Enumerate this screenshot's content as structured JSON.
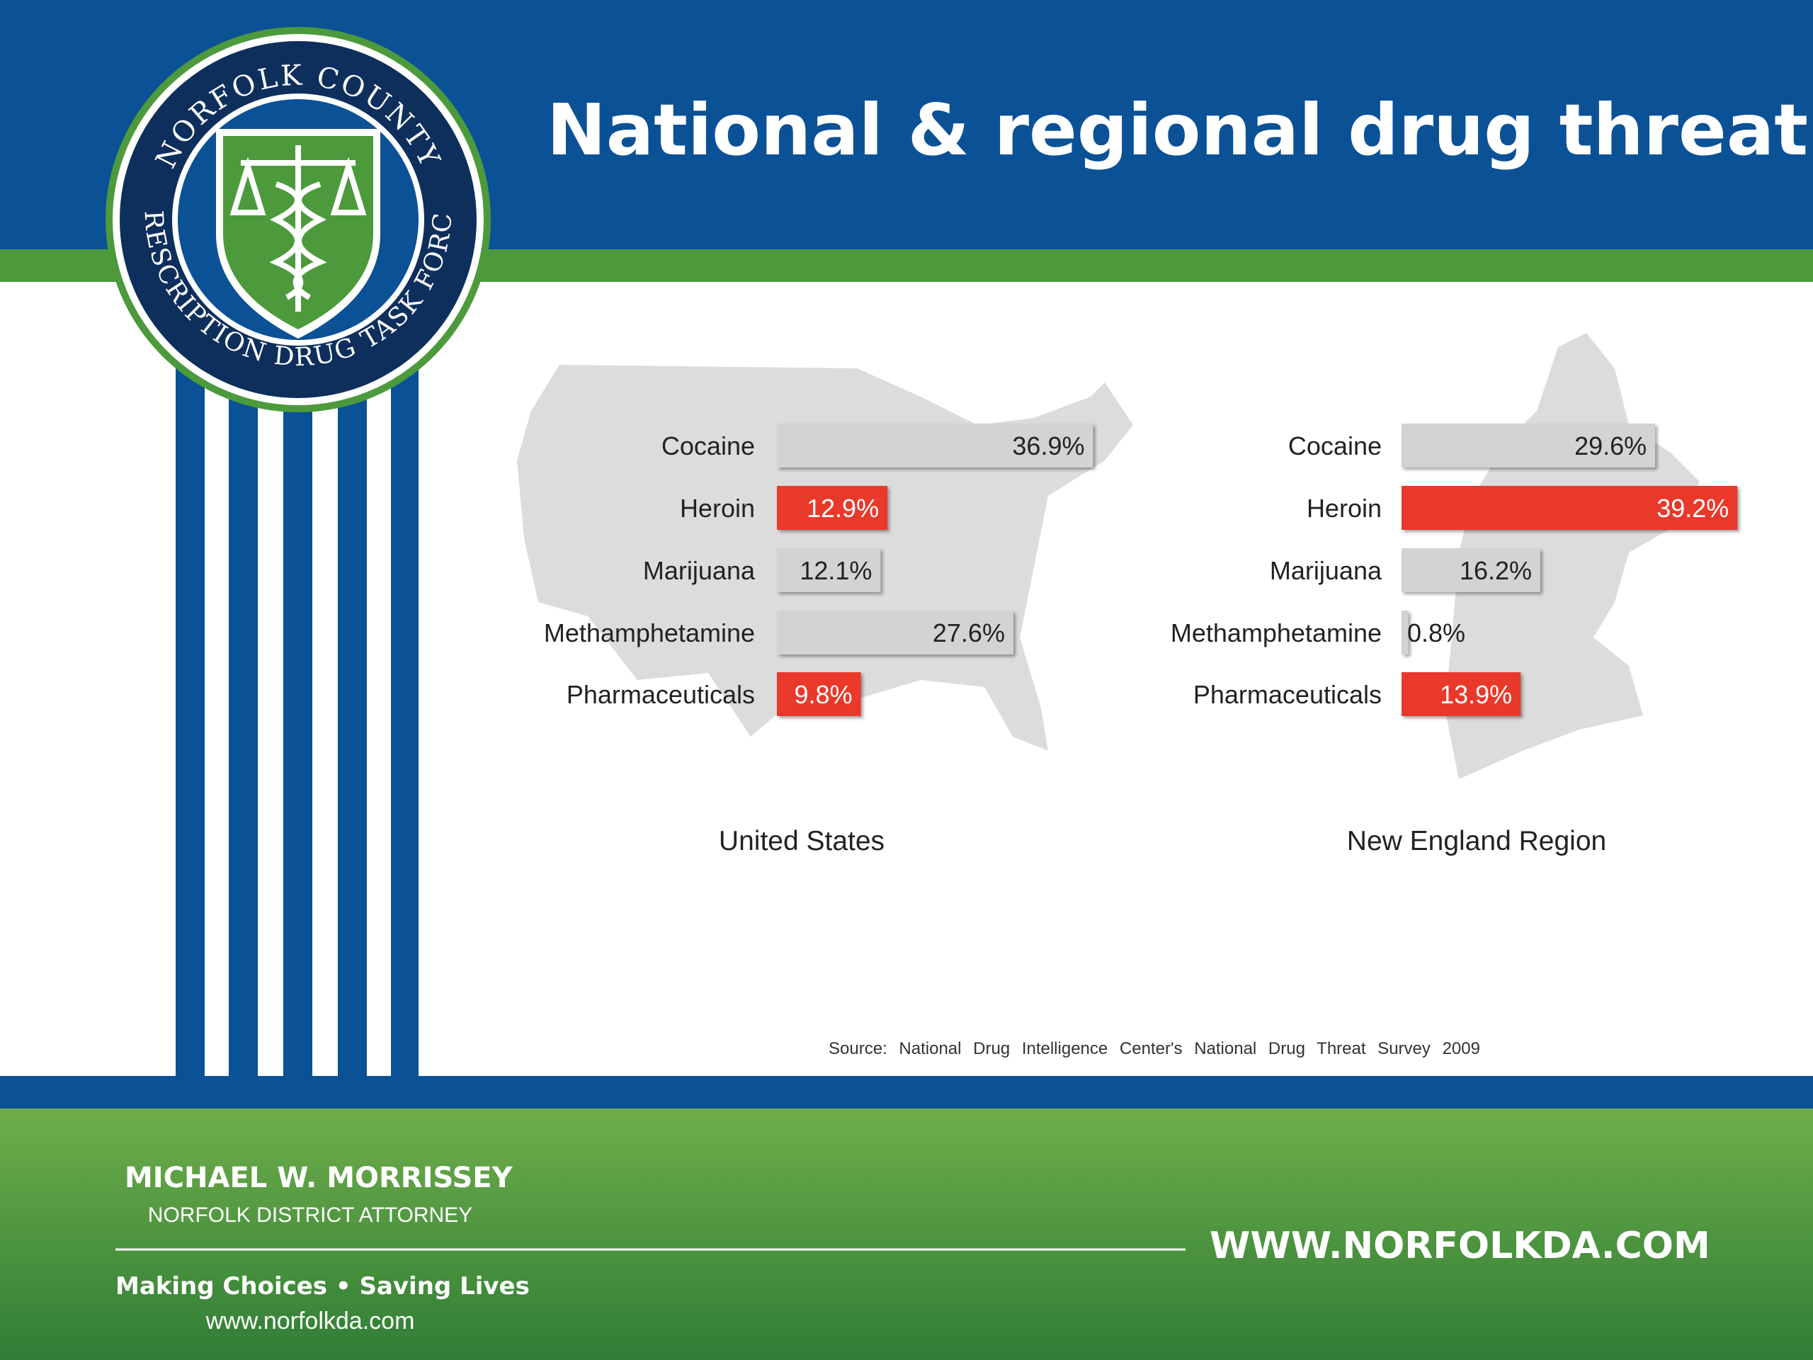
{
  "title": "National & regional drug threat",
  "logo": {
    "top": "NORFOLK COUNTY",
    "bottom": "PRESCRIPTION DRUG TASK FORCE"
  },
  "chart_data": [
    {
      "type": "bar",
      "title": "United States",
      "categories": [
        "Cocaine",
        "Heroin",
        "Marijuana",
        "Methamphetamine",
        "Pharmaceuticals"
      ],
      "values": [
        36.9,
        12.9,
        12.1,
        27.6,
        9.8
      ],
      "value_labels": [
        "36.9%",
        "12.9%",
        "12.1%",
        "27.6%",
        "9.8%"
      ],
      "colors": [
        "#d3d3d3",
        "#e8392b",
        "#d3d3d3",
        "#d3d3d3",
        "#e8392b"
      ]
    },
    {
      "type": "bar",
      "title": "New England Region",
      "categories": [
        "Cocaine",
        "Heroin",
        "Marijuana",
        "Methamphetamine",
        "Pharmaceuticals"
      ],
      "values": [
        29.6,
        39.2,
        16.2,
        0.8,
        13.9
      ],
      "value_labels": [
        "29.6%",
        "39.2%",
        "16.2%",
        "0.8%",
        "13.9%"
      ],
      "colors": [
        "#d3d3d3",
        "#e8392b",
        "#d3d3d3",
        "#d3d3d3",
        "#e8392b"
      ]
    }
  ],
  "source": "Source: National Drug Intelligence Center's National Drug Threat Survey 2009",
  "footer": {
    "name": "MICHAEL W. MORRISSEY",
    "role": "NORFOLK DISTRICT ATTORNEY",
    "motto": "Making Choices • Saving Lives",
    "url_small": "www.norfolkda.com",
    "url_large": "WWW.NORFOLKDA.COM"
  }
}
